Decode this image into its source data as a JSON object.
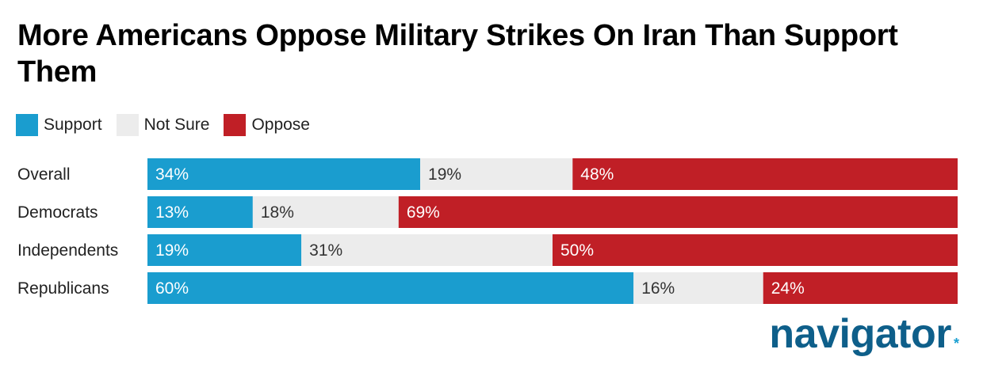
{
  "title": "More Americans Oppose Military Strikes On Iran Than Support Them",
  "legend": [
    {
      "label": "Support",
      "color": "#1a9dcf"
    },
    {
      "label": "Not Sure",
      "color": "#ececec"
    },
    {
      "label": "Oppose",
      "color": "#c01f26"
    }
  ],
  "logo": {
    "text": "navigator",
    "mark": "*"
  },
  "chart_data": {
    "type": "bar",
    "orientation": "horizontal",
    "stacked": true,
    "categories": [
      "Overall",
      "Democrats",
      "Independents",
      "Republicans"
    ],
    "series": [
      {
        "name": "Support",
        "values": [
          34,
          13,
          19,
          60
        ],
        "labels": [
          "34%",
          "13%",
          "19%",
          "60%"
        ],
        "color": "#1a9dcf",
        "text_color": "#ffffff"
      },
      {
        "name": "Not Sure",
        "values": [
          19,
          18,
          31,
          16
        ],
        "labels": [
          "19%",
          "18%",
          "31%",
          "16%"
        ],
        "color": "#ececec",
        "text_color": "#333333"
      },
      {
        "name": "Oppose",
        "values": [
          48,
          69,
          50,
          24
        ],
        "labels": [
          "48%",
          "69%",
          "50%",
          "24%"
        ],
        "color": "#c01f26",
        "text_color": "#ffffff"
      }
    ],
    "grid": false,
    "legend_position": "top-left"
  }
}
